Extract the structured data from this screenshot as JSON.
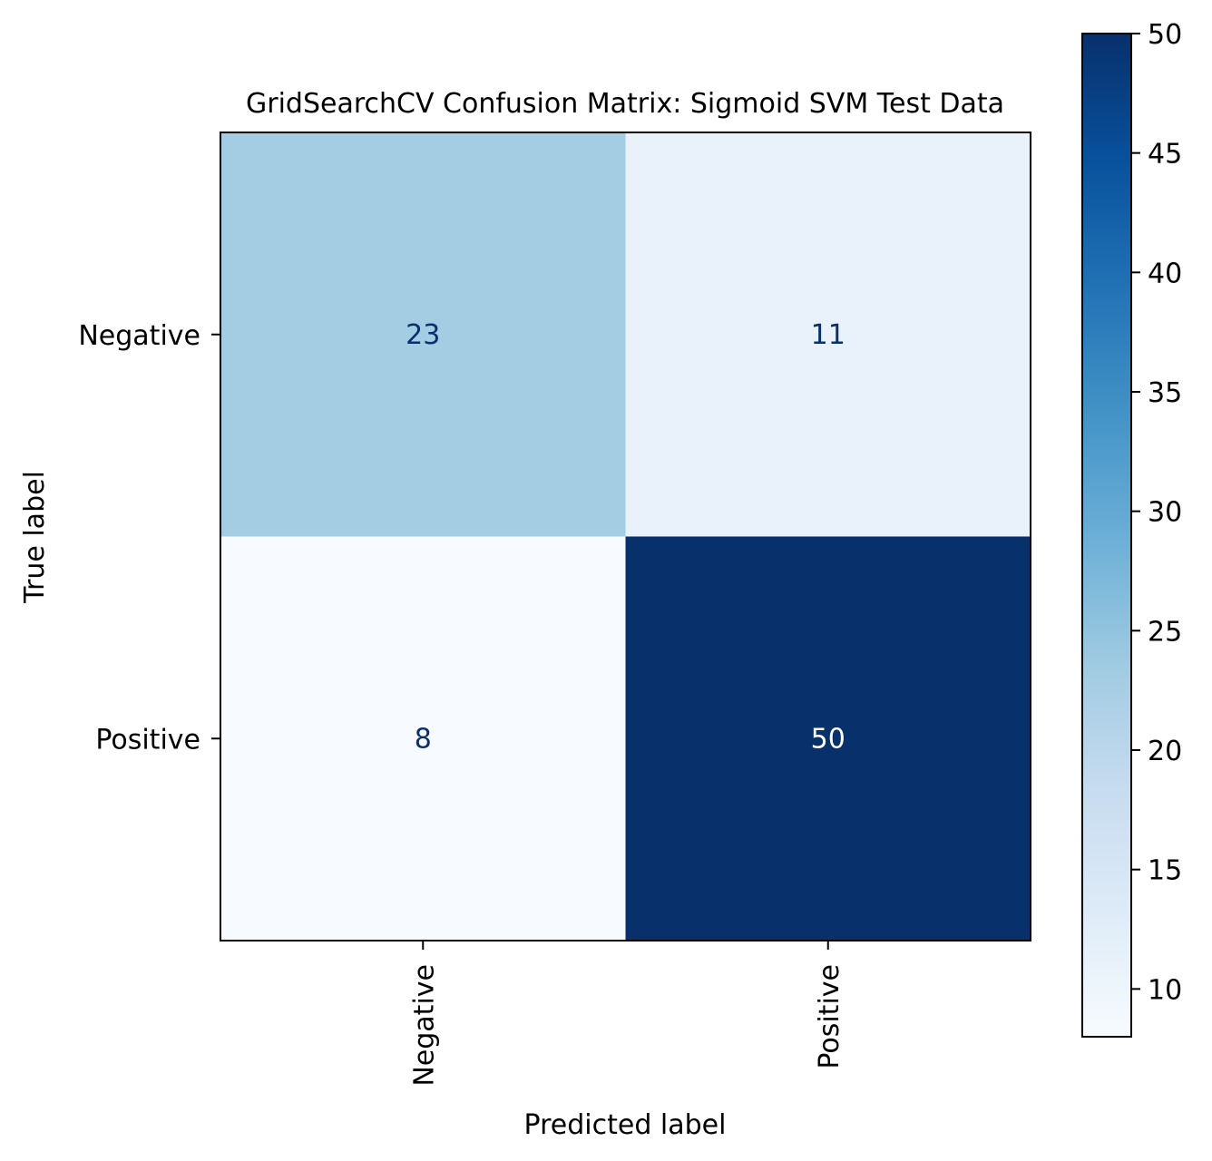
{
  "chart_data": {
    "type": "heatmap",
    "title": "GridSearchCV Confusion Matrix: Sigmoid SVM Test Data",
    "xlabel": "Predicted label",
    "ylabel": "True label",
    "x_categories": [
      "Negative",
      "Positive"
    ],
    "y_categories": [
      "Negative",
      "Positive"
    ],
    "values": [
      [
        23,
        11
      ],
      [
        8,
        50
      ]
    ],
    "colormap": "Blues",
    "colorbar": {
      "range": [
        8,
        50
      ],
      "ticks": [
        "10",
        "15",
        "20",
        "25",
        "30",
        "35",
        "40",
        "45",
        "50"
      ],
      "tick_values": [
        10,
        15,
        20,
        25,
        30,
        35,
        40,
        45,
        50
      ]
    },
    "text_color_dark": "#08306b",
    "text_color_light": "#ffffff",
    "grid": false
  }
}
